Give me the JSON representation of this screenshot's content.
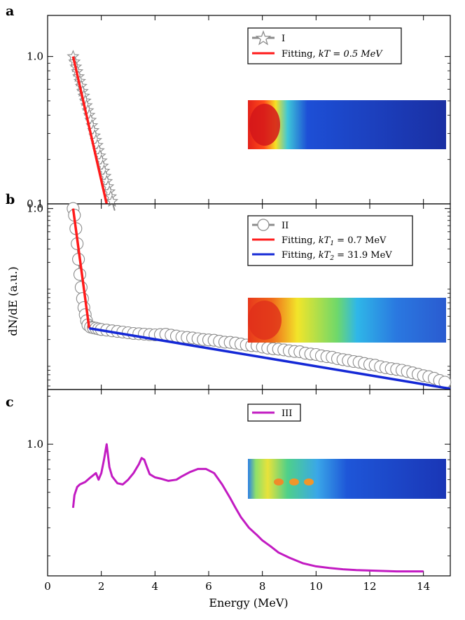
{
  "figure": {
    "xlabel": "Energy (MeV)",
    "ylabel": "dN/dE (a.u.)"
  },
  "colors": {
    "gray": "#8c8c8c",
    "red": "#ff1a1a",
    "blue": "#1428d6",
    "magenta": "#c21bc2"
  },
  "chart_data": [
    {
      "panel": "a",
      "type": "line",
      "yscale": "log",
      "xlim": [
        0,
        15
      ],
      "ylim": [
        0.1,
        1.9
      ],
      "xticks": [
        0,
        2,
        4,
        6,
        8,
        10,
        12,
        14
      ],
      "yticks": [
        {
          "value": 0.1,
          "label": "0.1"
        },
        {
          "value": 1.0,
          "label": "1.0"
        }
      ],
      "series": [
        {
          "name": "I",
          "marker": "star",
          "color": "gray",
          "x": [
            0.95,
            1.0,
            1.05,
            1.1,
            1.15,
            1.2,
            1.25,
            1.3,
            1.35,
            1.4,
            1.45,
            1.5,
            1.55,
            1.6,
            1.65,
            1.7,
            1.75,
            1.8,
            1.85,
            1.9,
            1.95,
            2.0,
            2.05,
            2.1,
            2.15,
            2.2,
            2.25,
            2.3,
            2.35,
            2.4,
            2.45,
            2.5
          ],
          "y": [
            1.0,
            0.92,
            0.85,
            0.79,
            0.73,
            0.68,
            0.63,
            0.58,
            0.54,
            0.5,
            0.465,
            0.43,
            0.4,
            0.37,
            0.34,
            0.315,
            0.29,
            0.27,
            0.25,
            0.23,
            0.212,
            0.196,
            0.181,
            0.167,
            0.154,
            0.142,
            0.131,
            0.121,
            0.112,
            0.104,
            0.097,
            0.09
          ]
        },
        {
          "name": "Fitting, kT = 0.5 MeV",
          "legend_plain": "Fitting, ",
          "legend_math": "kT = 0.5 MeV",
          "color": "red",
          "x": [
            0.95,
            2.2
          ],
          "y": [
            1.0,
            0.1
          ]
        }
      ]
    },
    {
      "panel": "b",
      "type": "line",
      "yscale": "log",
      "xlim": [
        0,
        15
      ],
      "ylim": [
        0.0045,
        1.15
      ],
      "yticks": [
        {
          "value": 1.0,
          "label": "1.0"
        }
      ],
      "series": [
        {
          "name": "II",
          "marker": "circle",
          "color": "gray",
          "x": [
            0.95,
            1.0,
            1.05,
            1.1,
            1.15,
            1.2,
            1.25,
            1.3,
            1.35,
            1.4,
            1.45,
            1.5,
            1.6,
            1.7,
            1.8,
            1.9,
            2.0,
            2.2,
            2.4,
            2.6,
            2.8,
            3.0,
            3.2,
            3.4,
            3.6,
            3.8,
            4.0,
            4.2,
            4.4,
            4.6,
            4.8,
            5.0,
            5.2,
            5.4,
            5.6,
            5.8,
            6.0,
            6.2,
            6.4,
            6.6,
            6.8,
            7.0,
            7.2,
            7.4,
            7.6,
            7.8,
            8.0,
            8.2,
            8.4,
            8.6,
            8.8,
            9.0,
            9.2,
            9.4,
            9.6,
            9.8,
            10.0,
            10.2,
            10.4,
            10.6,
            10.8,
            11.0,
            11.2,
            11.4,
            11.6,
            11.8,
            12.0,
            12.2,
            12.4,
            12.6,
            12.8,
            13.0,
            13.2,
            13.4,
            13.6,
            13.8,
            14.0,
            14.2,
            14.4,
            14.6,
            14.8
          ],
          "y": [
            1.0,
            0.82,
            0.55,
            0.35,
            0.22,
            0.14,
            0.095,
            0.068,
            0.052,
            0.042,
            0.035,
            0.031,
            0.029,
            0.0285,
            0.028,
            0.0275,
            0.027,
            0.0265,
            0.026,
            0.0255,
            0.025,
            0.0245,
            0.024,
            0.0238,
            0.0235,
            0.0232,
            0.023,
            0.0232,
            0.0234,
            0.0228,
            0.0222,
            0.0216,
            0.0213,
            0.021,
            0.0205,
            0.02,
            0.0198,
            0.0196,
            0.019,
            0.0185,
            0.0184,
            0.018,
            0.0175,
            0.017,
            0.0167,
            0.0166,
            0.016,
            0.0155,
            0.0152,
            0.015,
            0.0147,
            0.0143,
            0.014,
            0.0139,
            0.0133,
            0.013,
            0.0128,
            0.0123,
            0.012,
            0.0118,
            0.0113,
            0.011,
            0.0107,
            0.0104,
            0.0102,
            0.0098,
            0.0095,
            0.0093,
            0.0089,
            0.0086,
            0.0084,
            0.0082,
            0.008,
            0.0077,
            0.0074,
            0.0071,
            0.0068,
            0.0066,
            0.0063,
            0.0059,
            0.0056
          ]
        },
        {
          "name": "Fitting, kT1 = 0.7 MeV",
          "legend_plain": "Fitting, ",
          "legend_math": "kT",
          "legend_sub": "1",
          "legend_tail": " = 0.7 MeV",
          "color": "red",
          "x": [
            0.95,
            1.55
          ],
          "y": [
            1.0,
            0.028
          ]
        },
        {
          "name": "Fitting, kT2 = 31.9 MeV",
          "legend_plain": "Fitting, ",
          "legend_math": "kT",
          "legend_sub": "2",
          "legend_tail": " = 31.9 MeV",
          "color": "blue",
          "x": [
            1.55,
            15.0
          ],
          "y": [
            0.028,
            0.0046
          ]
        }
      ]
    },
    {
      "panel": "c",
      "type": "line",
      "yscale": "log",
      "xlim": [
        0,
        15
      ],
      "ylim": [
        0.15,
        2.2
      ],
      "yticks": [
        {
          "value": 1.0,
          "label": "1.0"
        }
      ],
      "series": [
        {
          "name": "III",
          "color": "magenta",
          "x": [
            0.95,
            1.0,
            1.1,
            1.2,
            1.4,
            1.6,
            1.8,
            1.9,
            2.0,
            2.1,
            2.2,
            2.3,
            2.4,
            2.6,
            2.8,
            3.0,
            3.2,
            3.4,
            3.5,
            3.6,
            3.7,
            3.8,
            4.0,
            4.2,
            4.5,
            4.8,
            5.0,
            5.3,
            5.6,
            5.9,
            6.2,
            6.5,
            6.8,
            7.0,
            7.2,
            7.5,
            7.8,
            8.0,
            8.3,
            8.6,
            9.0,
            9.5,
            10.0,
            10.5,
            11.0,
            11.5,
            12.0,
            12.5,
            13.0,
            13.5,
            14.0
          ],
          "y": [
            0.4,
            0.48,
            0.54,
            0.56,
            0.58,
            0.62,
            0.66,
            0.6,
            0.66,
            0.8,
            1.0,
            0.72,
            0.63,
            0.57,
            0.56,
            0.6,
            0.66,
            0.75,
            0.82,
            0.8,
            0.72,
            0.65,
            0.62,
            0.61,
            0.59,
            0.6,
            0.63,
            0.67,
            0.7,
            0.7,
            0.66,
            0.56,
            0.46,
            0.4,
            0.35,
            0.3,
            0.27,
            0.25,
            0.23,
            0.21,
            0.195,
            0.18,
            0.172,
            0.168,
            0.165,
            0.163,
            0.162,
            0.161,
            0.16,
            0.16,
            0.16
          ]
        }
      ]
    }
  ]
}
